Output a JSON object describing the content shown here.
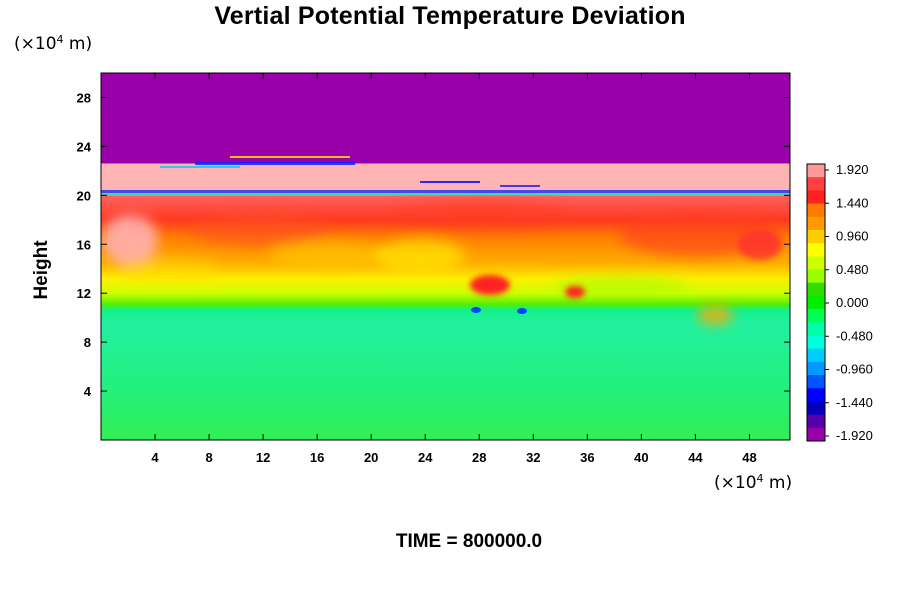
{
  "chart_data": {
    "type": "heatmap",
    "title": "Vertial Potential Temperature Deviation",
    "ylabel": "Height",
    "xlabel": "",
    "x_unit_label": {
      "prefix": "(×10",
      "exponent": "4",
      "suffix": " m)"
    },
    "y_unit_label": {
      "prefix": "(×10",
      "exponent": "4",
      "suffix": " m)"
    },
    "x_ticks": [
      4,
      8,
      12,
      16,
      20,
      24,
      28,
      32,
      36,
      40,
      44,
      48
    ],
    "y_ticks": [
      4,
      8,
      12,
      16,
      20,
      24,
      28
    ],
    "xlim": [
      0,
      51
    ],
    "ylim": [
      0,
      30
    ],
    "colorbar": {
      "tick_labels": [
        "1.920",
        "1.440",
        "0.960",
        "0.480",
        "0.000",
        "-0.480",
        "-0.960",
        "-1.440",
        "-1.920"
      ],
      "range": [
        -1.92,
        1.92
      ],
      "colors": [
        "#ff9a9a",
        "#ff4040",
        "#ff2020",
        "#ff7a00",
        "#ff9a00",
        "#ffcc00",
        "#ffff00",
        "#ccff00",
        "#99ff00",
        "#33dd00",
        "#00ee00",
        "#00ff55",
        "#00ffaa",
        "#00ffdd",
        "#00ccff",
        "#0099ff",
        "#0055ff",
        "#0000ff",
        "#0000bb",
        "#5500aa",
        "#9900aa"
      ]
    },
    "field_bands": [
      {
        "y0": 22.6,
        "y1": 30,
        "value": -2.0
      },
      {
        "y0": 19.8,
        "y1": 22.6,
        "value": 2.1
      },
      {
        "y0": 17.0,
        "y1": 19.8,
        "value": 1.6
      },
      {
        "y0": 14.5,
        "y1": 17.0,
        "value": 1.1
      },
      {
        "y0": 12.5,
        "y1": 14.5,
        "value": 0.6
      },
      {
        "y0": 11.0,
        "y1": 12.5,
        "value": 0.25
      },
      {
        "y0": 0,
        "y1": 11.0,
        "value": -0.2
      }
    ]
  },
  "footer": {
    "time_label": "TIME = 800000.0"
  }
}
